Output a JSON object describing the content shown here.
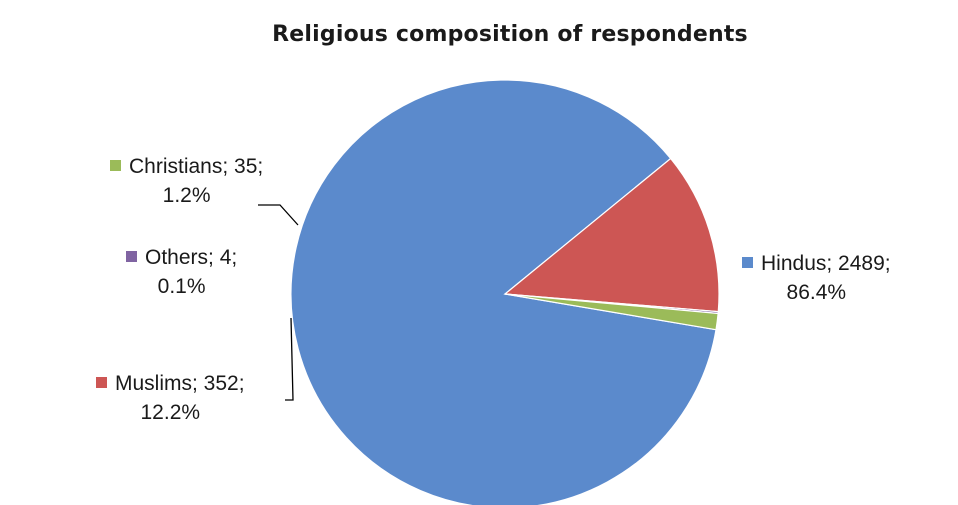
{
  "chart_data": {
    "type": "pie",
    "title": "Religious composition of respondents",
    "slices": [
      {
        "name": "Hindus",
        "value": 2489,
        "percent": "86.4%",
        "color": "#5B8ACC",
        "label_line1": "Hindus; 2489;",
        "label_line2": "86.4%"
      },
      {
        "name": "Muslims",
        "value": 352,
        "percent": "12.2%",
        "color": "#CD5654",
        "label_line1": "Muslims; 352;",
        "label_line2": "12.2%"
      },
      {
        "name": "Others",
        "value": 4,
        "percent": "0.1%",
        "color": "#8064A2",
        "label_line1": "Others; 4;",
        "label_line2": "0.1%"
      },
      {
        "name": "Christians",
        "value": 35,
        "percent": "1.2%",
        "color": "#9BBB59",
        "label_line1": "Christians; 35;",
        "label_line2": "1.2%"
      }
    ],
    "legend": false
  }
}
